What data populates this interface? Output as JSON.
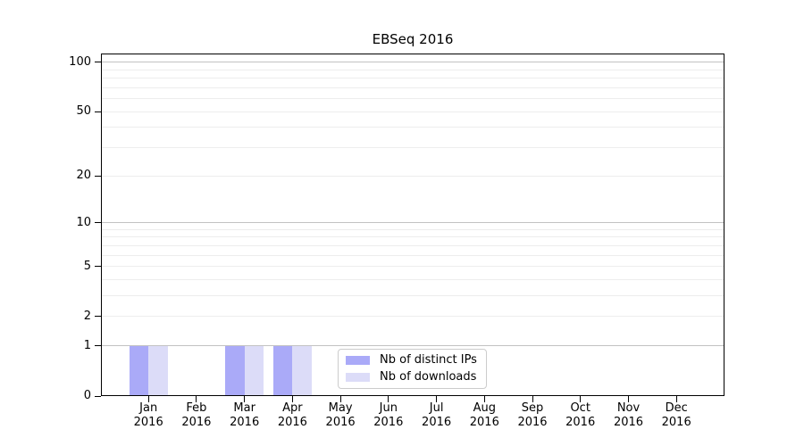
{
  "figure": {
    "title": "EBSeq 2016"
  },
  "legend": {
    "items": [
      {
        "label": "Nb of distinct IPs",
        "color": "#aaaaf8"
      },
      {
        "label": "Nb of downloads",
        "color": "#dcdcf8"
      }
    ]
  },
  "chart_data": {
    "type": "bar",
    "title": "EBSeq 2016",
    "months": [
      "Jan",
      "Feb",
      "Mar",
      "Apr",
      "May",
      "Jun",
      "Jul",
      "Aug",
      "Sep",
      "Oct",
      "Nov",
      "Dec"
    ],
    "year_label": "2016",
    "series": [
      {
        "key": "distinct-ips",
        "name": "Nb of distinct IPs",
        "color": "#aaaaf8",
        "values": [
          1,
          0,
          1,
          1,
          0,
          0,
          0,
          0,
          0,
          0,
          0,
          0
        ]
      },
      {
        "key": "downloads",
        "name": "Nb of downloads",
        "color": "#dcdcf8",
        "values": [
          1,
          0,
          1,
          1,
          0,
          0,
          0,
          0,
          0,
          0,
          0,
          0
        ]
      }
    ],
    "y_axis": {
      "scale": "log10(value+1)",
      "ticks": [
        0,
        1,
        2,
        5,
        10,
        20,
        50,
        100
      ],
      "major_gridlines": [
        1,
        10,
        100
      ],
      "minor_gridlines": [
        2,
        3,
        4,
        5,
        6,
        7,
        8,
        9,
        20,
        30,
        40,
        50,
        60,
        70,
        80,
        90
      ],
      "ylim": [
        0,
        113
      ]
    },
    "xlabel": "",
    "ylabel": "",
    "grid": "horizontal",
    "legend_position": "bottom-center",
    "colors": {
      "grid_major": "#c2c2c2",
      "grid_minor": "#ededed",
      "spine": "#000000",
      "background": "#ffffff"
    }
  }
}
